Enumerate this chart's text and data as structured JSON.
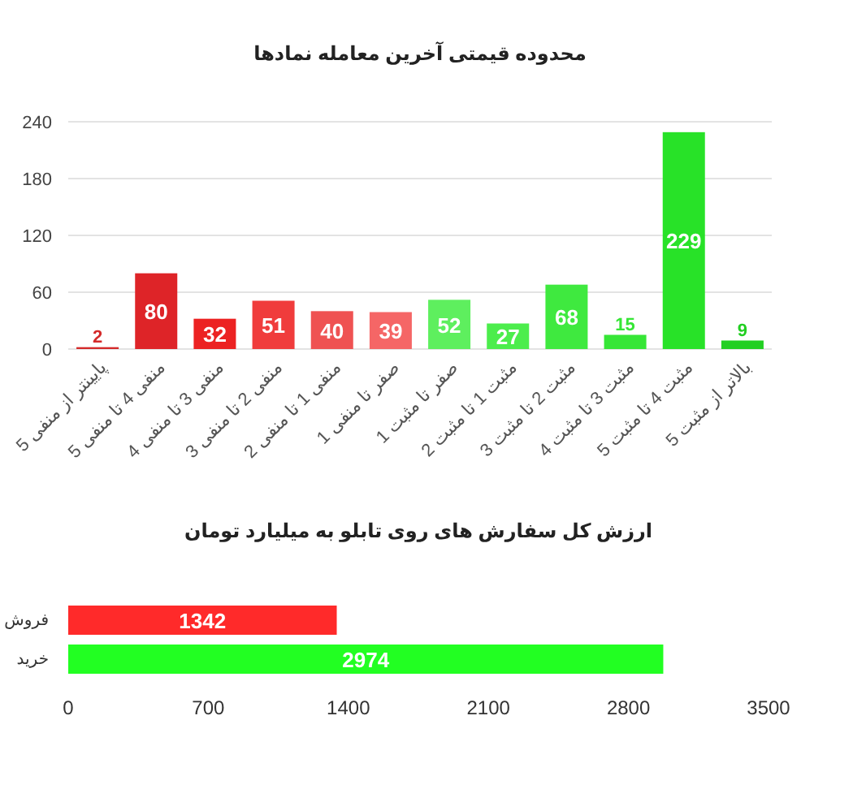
{
  "chart_data": [
    {
      "type": "bar",
      "title": "محدوده قیمتی آخرین معامله نمادها",
      "categories": [
        "پایینتر از منفی 5",
        "منفی 4 تا منفی 5",
        "منفی 3 تا منفی 4",
        "منفی 2 تا منفی 3",
        "منفی 1 تا منفی 2",
        "صفر تا منفی 1",
        "صفر تا مثبت 1",
        "مثبت 1 تا مثبت 2",
        "مثبت 2 تا مثبت 3",
        "مثبت 3 تا مثبت 4",
        "مثبت 4 تا مثبت 5",
        "بالاتر از مثبت 5"
      ],
      "values": [
        2,
        80,
        32,
        51,
        40,
        39,
        52,
        27,
        68,
        15,
        229,
        9
      ],
      "colors": [
        "#d42a2a",
        "#de2428",
        "#ec2222",
        "#f03c3c",
        "#ef5252",
        "#f56666",
        "#5eef5e",
        "#4ced4c",
        "#3fe93f",
        "#36e636",
        "#28e228",
        "#22cf22"
      ],
      "ylim": [
        0,
        240
      ],
      "yticks": [
        0,
        60,
        120,
        180,
        240
      ],
      "grid": "y",
      "data_labels": true
    },
    {
      "type": "bar",
      "orientation": "horizontal",
      "title": "ارزش کل سفارش های روی تابلو به میلیارد تومان",
      "categories": [
        "فروش",
        "خرید"
      ],
      "values": [
        1342,
        2974
      ],
      "colors": [
        "#ff2a2a",
        "#22ff22"
      ],
      "xlim": [
        0,
        3500
      ],
      "xticks": [
        0,
        700,
        1400,
        2100,
        2800,
        3500
      ],
      "data_labels": true
    }
  ]
}
